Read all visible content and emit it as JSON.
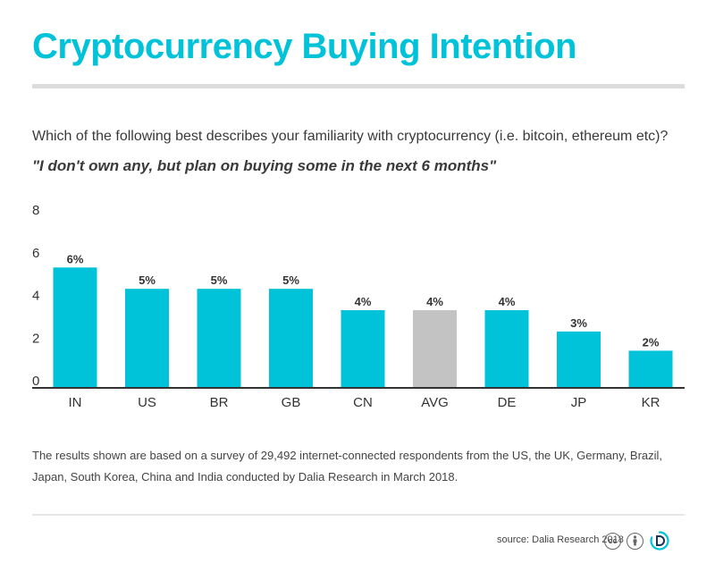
{
  "header": {
    "title": "Cryptocurrency Buying Intention",
    "question": "Which of the following best describes your familiarity with cryptocurrency (i.e. bitcoin, ethereum etc)?",
    "quote": "\"I don't own any, but plan on buying some in the next 6 months\""
  },
  "chart_data": {
    "type": "bar",
    "categories": [
      "IN",
      "US",
      "BR",
      "GB",
      "CN",
      "AVG",
      "DE",
      "JP",
      "KR"
    ],
    "values": [
      5.6,
      4.6,
      4.6,
      4.6,
      3.6,
      3.6,
      3.6,
      2.6,
      1.7
    ],
    "data_labels": [
      "6%",
      "5%",
      "5%",
      "5%",
      "4%",
      "4%",
      "4%",
      "3%",
      "2%"
    ],
    "yticks": [
      "0",
      "2",
      "4",
      "6",
      "8"
    ],
    "ylim": [
      0,
      8
    ],
    "grid": false,
    "colors": {
      "bar": "#00c2d9",
      "highlight": "#c3c3c3",
      "highlight_category": "AVG"
    }
  },
  "footer": {
    "note": "The results shown are based on a survey of 29,492 internet-connected respondents from the US, the UK, Germany, Brazil, Japan, South Korea, China and India conducted by Dalia Research in March 2018.",
    "source": "source: Dalia Research 2018",
    "cc_label": "cc",
    "icons": [
      "creative-commons-icon",
      "attribution-person-icon",
      "dalia-logo-icon"
    ]
  }
}
